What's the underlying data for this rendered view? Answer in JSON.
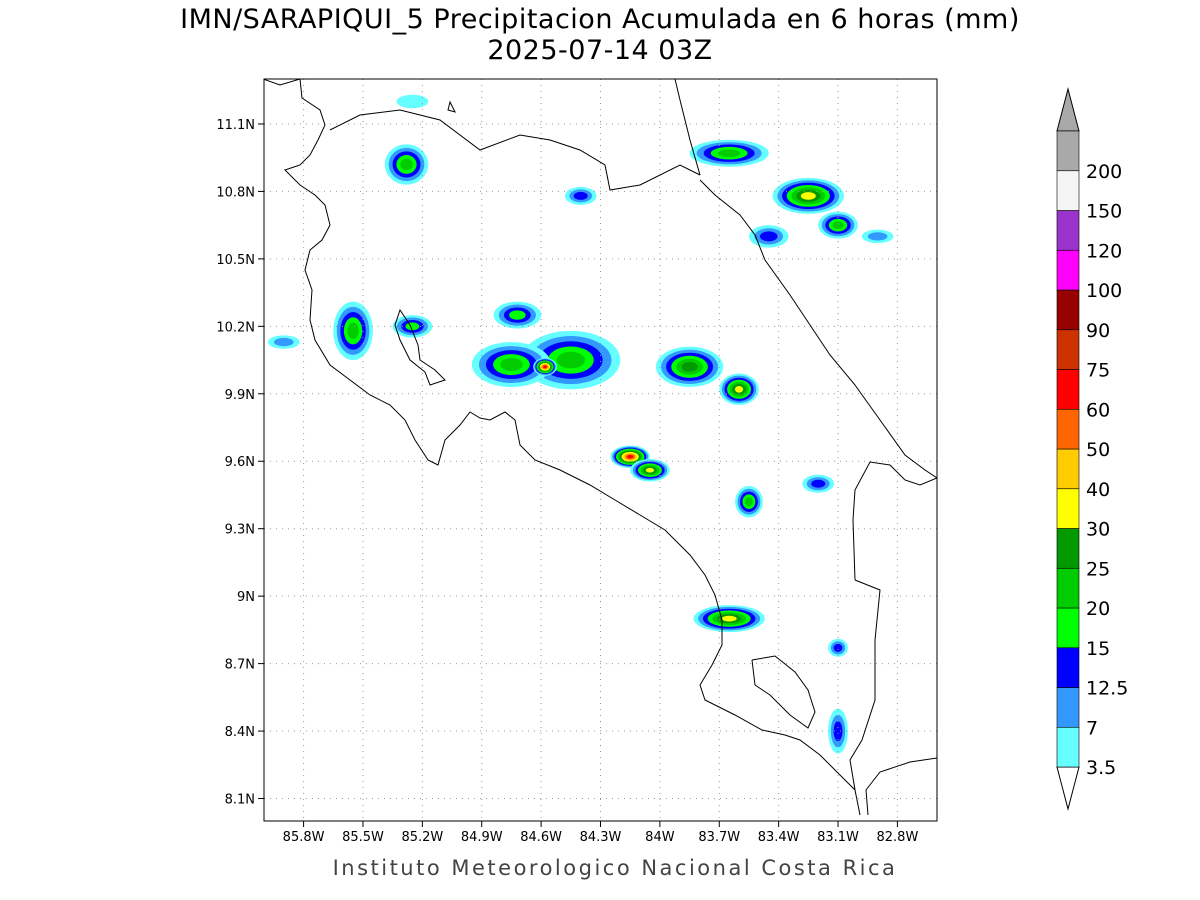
{
  "title": {
    "line1": "IMN/SARAPIQUI_5 Precipitacion Acumulada en 6 horas (mm)",
    "line2": "2025-07-14 03Z"
  },
  "credit": "Instituto Meteorologico Nacional Costa Rica",
  "map": {
    "lon_range": [
      -86.0,
      -82.6
    ],
    "lat_range": [
      8.0,
      11.3
    ],
    "lon_ticks": [
      "85.8W",
      "85.5W",
      "85.2W",
      "84.9W",
      "84.6W",
      "84.3W",
      "84W",
      "83.7W",
      "83.4W",
      "83.1W",
      "82.8W"
    ],
    "lon_values": [
      -85.8,
      -85.5,
      -85.2,
      -84.9,
      -84.6,
      -84.3,
      -84.0,
      -83.7,
      -83.4,
      -83.1,
      -82.8
    ],
    "lat_ticks": [
      "11.1N",
      "10.8N",
      "10.5N",
      "10.2N",
      "9.9N",
      "9.6N",
      "9.3N",
      "9N",
      "8.7N",
      "8.4N",
      "8.1N"
    ],
    "lat_values": [
      11.1,
      10.8,
      10.5,
      10.2,
      9.9,
      9.6,
      9.3,
      9.0,
      8.7,
      8.4,
      8.1
    ],
    "grid": "dotted"
  },
  "colorbar": {
    "unit": "mm",
    "labels": [
      "3.5",
      "7",
      "12.5",
      "15",
      "20",
      "25",
      "30",
      "40",
      "50",
      "60",
      "75",
      "90",
      "100",
      "120",
      "150",
      "200"
    ],
    "colors": [
      "#66ffff",
      "#3399ff",
      "#0000ff",
      "#00ff00",
      "#00cc00",
      "#009900",
      "#ffff00",
      "#ffcc00",
      "#ff6600",
      "#ff0000",
      "#cc3300",
      "#990000",
      "#ff00ff",
      "#9933cc",
      "#f5f5f5",
      "#a9a9a9"
    ]
  },
  "precip_cells": [
    {
      "lon": -84.45,
      "lat": 10.05,
      "rx": 0.25,
      "ry": 0.13,
      "level": 4
    },
    {
      "lon": -84.75,
      "lat": 10.03,
      "rx": 0.2,
      "ry": 0.1,
      "level": 4
    },
    {
      "lon": -84.58,
      "lat": 10.02,
      "rx": 0.06,
      "ry": 0.04,
      "level": 9
    },
    {
      "lon": -84.15,
      "lat": 9.62,
      "rx": 0.1,
      "ry": 0.05,
      "level": 9
    },
    {
      "lon": -83.85,
      "lat": 10.02,
      "rx": 0.17,
      "ry": 0.09,
      "level": 5
    },
    {
      "lon": -83.6,
      "lat": 9.92,
      "rx": 0.1,
      "ry": 0.07,
      "level": 6
    },
    {
      "lon": -83.65,
      "lat": 10.97,
      "rx": 0.2,
      "ry": 0.06,
      "level": 4
    },
    {
      "lon": -83.25,
      "lat": 10.78,
      "rx": 0.18,
      "ry": 0.08,
      "level": 6
    },
    {
      "lon": -83.1,
      "lat": 10.65,
      "rx": 0.1,
      "ry": 0.06,
      "level": 4
    },
    {
      "lon": -85.55,
      "lat": 10.18,
      "rx": 0.1,
      "ry": 0.13,
      "level": 4
    },
    {
      "lon": -85.28,
      "lat": 10.92,
      "rx": 0.11,
      "ry": 0.09,
      "level": 4
    },
    {
      "lon": -83.65,
      "lat": 8.9,
      "rx": 0.18,
      "ry": 0.06,
      "level": 6
    },
    {
      "lon": -83.55,
      "lat": 9.42,
      "rx": 0.07,
      "ry": 0.07,
      "level": 4
    },
    {
      "lon": -84.72,
      "lat": 10.25,
      "rx": 0.12,
      "ry": 0.06,
      "level": 3
    },
    {
      "lon": -83.1,
      "lat": 8.4,
      "rx": 0.05,
      "ry": 0.1,
      "level": 2
    },
    {
      "lon": -83.2,
      "lat": 9.5,
      "rx": 0.08,
      "ry": 0.04,
      "level": 2
    },
    {
      "lon": -84.05,
      "lat": 9.56,
      "rx": 0.1,
      "ry": 0.05,
      "level": 6
    },
    {
      "lon": -85.9,
      "lat": 10.13,
      "rx": 0.08,
      "ry": 0.03,
      "level": 1
    },
    {
      "lon": -85.25,
      "lat": 10.2,
      "rx": 0.1,
      "ry": 0.05,
      "level": 3
    },
    {
      "lon": -84.4,
      "lat": 10.78,
      "rx": 0.08,
      "ry": 0.04,
      "level": 2
    },
    {
      "lon": -83.45,
      "lat": 10.6,
      "rx": 0.1,
      "ry": 0.05,
      "level": 2
    },
    {
      "lon": -85.25,
      "lat": 11.2,
      "rx": 0.08,
      "ry": 0.03,
      "level": 0
    },
    {
      "lon": -82.9,
      "lat": 10.6,
      "rx": 0.08,
      "ry": 0.03,
      "level": 1
    },
    {
      "lon": -83.1,
      "lat": 8.77,
      "rx": 0.05,
      "ry": 0.04,
      "level": 2
    }
  ]
}
